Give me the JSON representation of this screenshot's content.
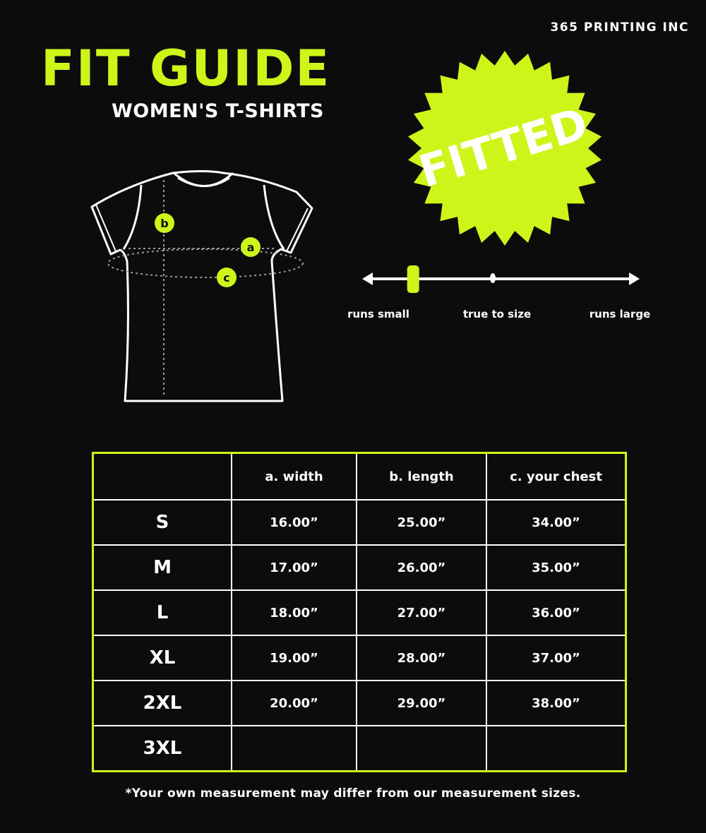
{
  "brand": "365 PRINTING INC",
  "header": {
    "title": "FIT GUIDE",
    "subtitle": "WOMEN'S T-SHIRTS"
  },
  "badge": {
    "label": "FITTED"
  },
  "diagram": {
    "markers": [
      "a",
      "b",
      "c"
    ]
  },
  "fit_scale": {
    "labels": {
      "left": "runs small",
      "middle": "true to size",
      "right": "runs large"
    },
    "position": 0.18
  },
  "colors": {
    "accent": "#cdf51a",
    "background": "#0c0c0c",
    "text": "#ffffff"
  },
  "table": {
    "headers": [
      "",
      "a. width",
      "b. length",
      "c. your chest"
    ],
    "rows": [
      [
        "S",
        "16.00”",
        "25.00”",
        "34.00”"
      ],
      [
        "M",
        "17.00”",
        "26.00”",
        "35.00”"
      ],
      [
        "L",
        "18.00”",
        "27.00”",
        "36.00”"
      ],
      [
        "XL",
        "19.00”",
        "28.00”",
        "37.00”"
      ],
      [
        "2XL",
        "20.00”",
        "29.00”",
        "38.00”"
      ],
      [
        "3XL",
        "",
        "",
        ""
      ]
    ]
  },
  "footnote": "*Your own measurement may differ from our measurement sizes."
}
